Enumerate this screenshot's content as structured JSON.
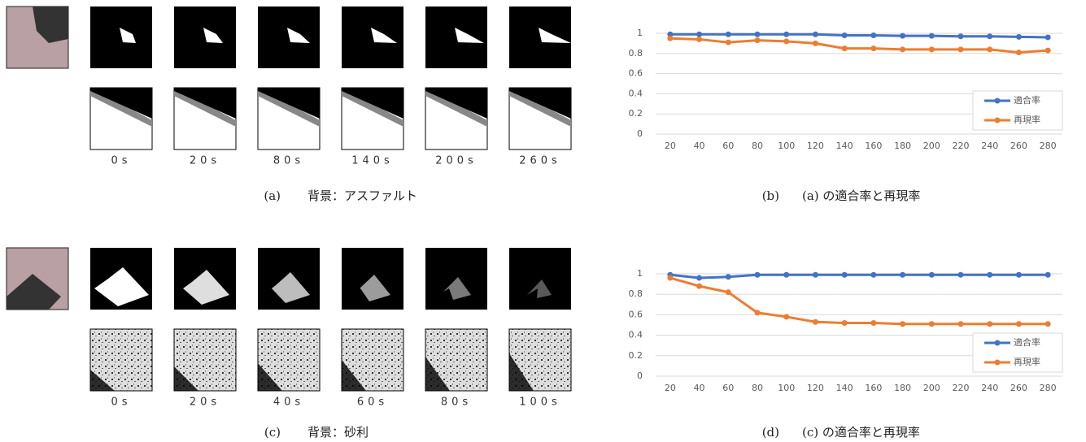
{
  "figures": [
    {
      "label": "(a)",
      "caption": "背景：アスファルト",
      "times": [
        "0s",
        "20s",
        "80s",
        "140s",
        "200s",
        "260s"
      ]
    },
    {
      "label": "(c)",
      "caption": "背景：砂利",
      "times": [
        "0s",
        "20s",
        "40s",
        "60s",
        "80s",
        "100s"
      ]
    }
  ],
  "chart_data": [
    {
      "type": "line",
      "caption_label": "(b)",
      "caption": "(a) の適合率と再現率",
      "x": [
        20,
        40,
        60,
        80,
        100,
        120,
        140,
        160,
        180,
        200,
        220,
        240,
        260,
        280
      ],
      "xlim": [
        10,
        290
      ],
      "ylim": [
        0,
        1
      ],
      "yticks": [
        0,
        0.2,
        0.4,
        0.6,
        0.8,
        1
      ],
      "grid": true,
      "legend": "lower right",
      "series": [
        {
          "name": "適合率",
          "color": "#4472c4",
          "values": [
            0.99,
            0.99,
            0.99,
            0.99,
            0.99,
            0.99,
            0.98,
            0.98,
            0.975,
            0.975,
            0.97,
            0.97,
            0.965,
            0.96
          ]
        },
        {
          "name": "再現率",
          "color": "#ed7d31",
          "values": [
            0.95,
            0.94,
            0.91,
            0.93,
            0.92,
            0.9,
            0.85,
            0.85,
            0.84,
            0.84,
            0.84,
            0.84,
            0.81,
            0.83
          ]
        }
      ]
    },
    {
      "type": "line",
      "caption_label": "(d)",
      "caption": "(c) の適合率と再現率",
      "x": [
        20,
        40,
        60,
        80,
        100,
        120,
        140,
        160,
        180,
        200,
        220,
        240,
        260,
        280
      ],
      "xlim": [
        10,
        290
      ],
      "ylim": [
        0,
        1
      ],
      "yticks": [
        0,
        0.2,
        0.4,
        0.6,
        0.8,
        1
      ],
      "grid": true,
      "legend": "lower right",
      "series": [
        {
          "name": "適合率",
          "color": "#4472c4",
          "values": [
            0.99,
            0.96,
            0.97,
            0.99,
            0.99,
            0.99,
            0.99,
            0.99,
            0.99,
            0.99,
            0.99,
            0.99,
            0.99,
            0.99
          ]
        },
        {
          "name": "再現率",
          "color": "#ed7d31",
          "values": [
            0.96,
            0.88,
            0.82,
            0.62,
            0.58,
            0.53,
            0.52,
            0.52,
            0.51,
            0.51,
            0.51,
            0.51,
            0.51,
            0.51
          ]
        }
      ]
    }
  ]
}
